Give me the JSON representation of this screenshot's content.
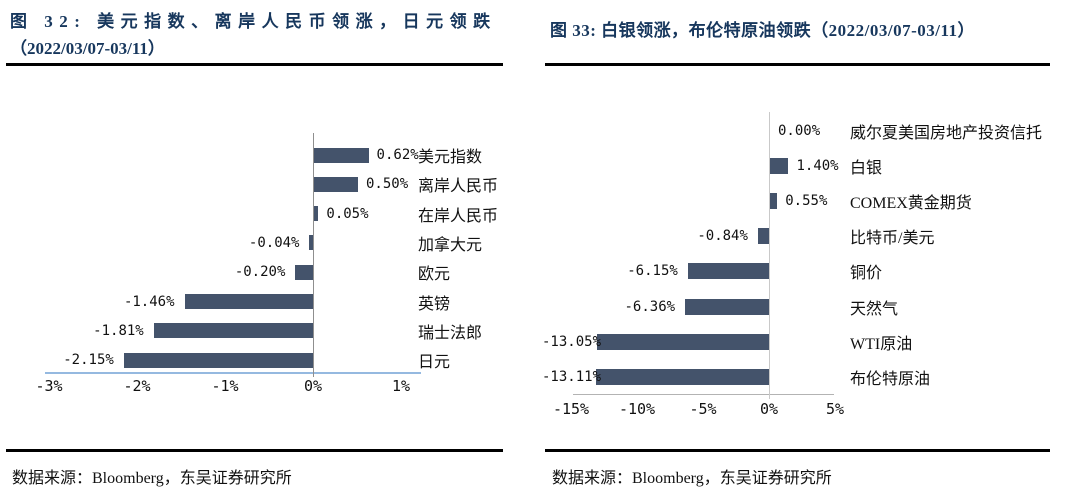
{
  "colors": {
    "bar_fill": "#44536B",
    "title_navy": "#17375D",
    "axis_blue": "#95B9E0",
    "axis_gray": "#B3B3B3",
    "zero_line_left": "#8F8F8F",
    "zero_line_right": "#C9C9C9",
    "divider_black": "#000000"
  },
  "chart_data": [
    {
      "type": "bar",
      "orientation": "horizontal",
      "title": "图 32: 美元指数、离岸人民币领涨，日元领跌（2022/03/07-03/11）",
      "title_lines": [
        "图 32: 美元指数、离岸人民币领涨，日元领跌",
        "（2022/03/07-03/11）"
      ],
      "categories": [
        "美元指数",
        "离岸人民币",
        "在岸人民币",
        "加拿大元",
        "欧元",
        "英镑",
        "瑞士法郎",
        "日元"
      ],
      "values": [
        0.62,
        0.5,
        0.05,
        -0.04,
        -0.2,
        -1.46,
        -1.81,
        -2.15
      ],
      "value_labels": [
        "0.62%",
        "0.50%",
        "0.05%",
        "-0.04%",
        "-0.20%",
        "-1.46%",
        "-1.81%",
        "-2.15%"
      ],
      "xlim": [
        -3,
        1
      ],
      "xticks": [
        {
          "label": "-3%",
          "value": -3
        },
        {
          "label": "-2%",
          "value": -2
        },
        {
          "label": "-1%",
          "value": -1
        },
        {
          "label": "0%",
          "value": 0
        },
        {
          "label": "1%",
          "value": 1
        }
      ],
      "xlabel": "",
      "ylabel": "",
      "grid": false,
      "legend": null,
      "source": "数据来源：Bloomberg，东吴证券研究所"
    },
    {
      "type": "bar",
      "orientation": "horizontal",
      "title": "图 33: 白银领涨，布伦特原油领跌（2022/03/07-03/11）",
      "title_lines": [
        "图 33: 白银领涨，布伦特原油领跌（2022/03/07-03/11）"
      ],
      "categories": [
        "威尔夏美国房地产投资信托",
        "白银",
        "COMEX黄金期货",
        "比特币/美元",
        "铜价",
        "天然气",
        "WTI原油",
        "布伦特原油"
      ],
      "values": [
        0.0,
        1.4,
        0.55,
        -0.84,
        -6.15,
        -6.36,
        -13.05,
        -13.11
      ],
      "value_labels": [
        "0.00%",
        "1.40%",
        "0.55%",
        "-0.84%",
        "-6.15%",
        "-6.36%",
        "-13.05%",
        "-13.11%"
      ],
      "xlim": [
        -15,
        5
      ],
      "xticks": [
        {
          "label": "-15%",
          "value": -15
        },
        {
          "label": "-10%",
          "value": -10
        },
        {
          "label": "-5%",
          "value": -5
        },
        {
          "label": "0%",
          "value": 0
        },
        {
          "label": "5%",
          "value": 5
        }
      ],
      "xlabel": "",
      "ylabel": "",
      "grid": false,
      "legend": null,
      "source": "数据来源：Bloomberg，东吴证券研究所"
    }
  ]
}
